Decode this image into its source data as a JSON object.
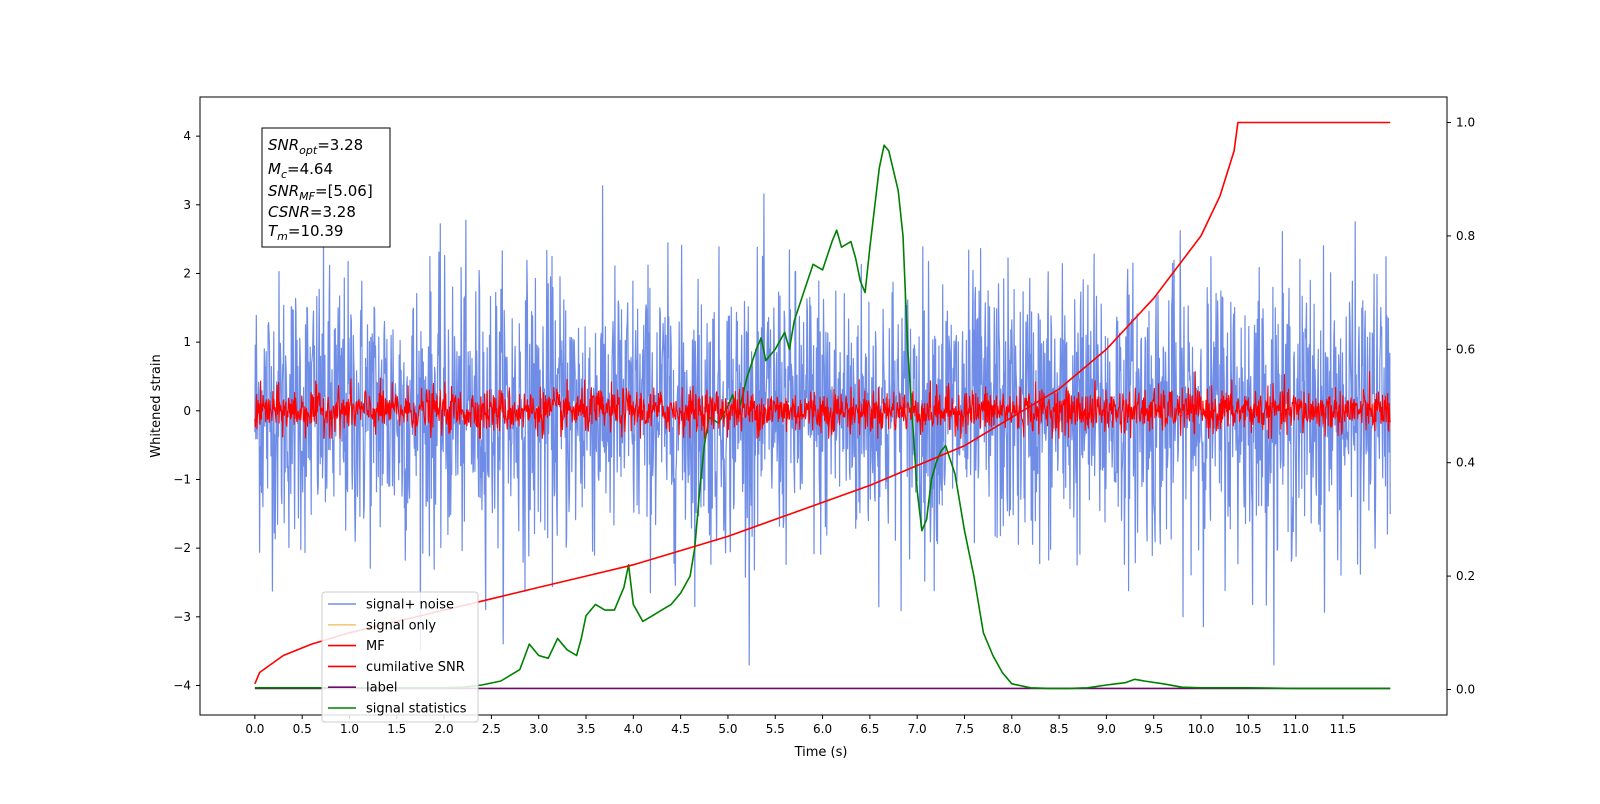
{
  "chart_data": {
    "type": "line",
    "xlabel": "Time (s)",
    "ylabel": "Whitened strain",
    "xlim": [
      -0.58,
      12.6
    ],
    "ylim": [
      -4.43,
      4.57
    ],
    "y2lim": [
      -0.045,
      1.045
    ],
    "x_ticks": [
      "0.0",
      "0.5",
      "1.0",
      "1.5",
      "2.0",
      "2.5",
      "3.0",
      "3.5",
      "4.0",
      "4.5",
      "5.0",
      "5.5",
      "6.0",
      "6.5",
      "7.0",
      "7.5",
      "8.0",
      "8.5",
      "9.0",
      "9.5",
      "10.0",
      "10.5",
      "11.0",
      "11.5"
    ],
    "y_ticks": [
      "4",
      "3",
      "2",
      "1",
      "0",
      "−1",
      "−2",
      "−3",
      "−4"
    ],
    "y2_ticks": [
      "1.0",
      "0.8",
      "0.6",
      "0.4",
      "0.2",
      "0.0"
    ],
    "stats_box": {
      "snr_opt": {
        "name": "SNR",
        "sub": "opt",
        "value": "=3.28"
      },
      "mc": {
        "name": "M",
        "sub": "c",
        "value": "=4.64"
      },
      "snr_mf": {
        "name": "SNR",
        "sub": "MF",
        "value": "=[5.06]"
      },
      "csnr": {
        "name": "CSNR",
        "sub": "",
        "value": "=3.28"
      },
      "tm": {
        "name": "T",
        "sub": "m",
        "value": "=10.39"
      }
    },
    "series": [
      {
        "name": "signal+ noise",
        "color": "#6f8de6",
        "axis": "left",
        "kind": "noise",
        "sigma": 1.0,
        "x_range": [
          0,
          12.0
        ]
      },
      {
        "name": "signal only",
        "color": "#f5c97a",
        "axis": "left",
        "kind": "flat"
      },
      {
        "name": "MF",
        "color": "#ff0000",
        "axis": "left",
        "kind": "noise",
        "sigma": 0.16,
        "x_range": [
          0,
          12.0
        ]
      },
      {
        "name": "cumilative SNR",
        "color": "#ff0000",
        "axis": "right",
        "x": [
          0,
          0.05,
          0.3,
          0.6,
          1.0,
          1.5,
          2.0,
          2.5,
          3.0,
          3.5,
          4.0,
          4.5,
          5.0,
          5.5,
          6.0,
          6.5,
          7.0,
          7.5,
          8.0,
          8.5,
          9.0,
          9.5,
          10.0,
          10.2,
          10.35,
          10.39,
          12.0
        ],
        "y": [
          0.01,
          0.03,
          0.06,
          0.08,
          0.1,
          0.12,
          0.14,
          0.16,
          0.18,
          0.2,
          0.22,
          0.245,
          0.27,
          0.3,
          0.33,
          0.36,
          0.395,
          0.43,
          0.48,
          0.53,
          0.6,
          0.69,
          0.8,
          0.87,
          0.95,
          1.0,
          1.0
        ]
      },
      {
        "name": "label",
        "color": "#6a0a6a",
        "axis": "right",
        "x": [
          0,
          12.0
        ],
        "y": [
          0.002,
          0.002
        ]
      },
      {
        "name": "signal statistics",
        "color": "#008000",
        "axis": "right",
        "x": [
          0,
          0.5,
          1.0,
          1.5,
          2.0,
          2.2,
          2.4,
          2.6,
          2.8,
          2.9,
          3.0,
          3.1,
          3.2,
          3.3,
          3.4,
          3.45,
          3.5,
          3.6,
          3.7,
          3.8,
          3.9,
          3.95,
          4.0,
          4.1,
          4.2,
          4.3,
          4.4,
          4.5,
          4.6,
          4.65,
          4.7,
          4.75,
          4.8,
          4.9,
          5.0,
          5.05,
          5.1,
          5.2,
          5.3,
          5.35,
          5.4,
          5.5,
          5.6,
          5.65,
          5.7,
          5.8,
          5.9,
          6.0,
          6.1,
          6.15,
          6.2,
          6.3,
          6.35,
          6.4,
          6.45,
          6.5,
          6.6,
          6.65,
          6.7,
          6.8,
          6.85,
          6.9,
          7.0,
          7.05,
          7.1,
          7.15,
          7.2,
          7.25,
          7.3,
          7.4,
          7.5,
          7.6,
          7.7,
          7.8,
          7.9,
          8.0,
          8.2,
          8.4,
          8.6,
          8.8,
          9.0,
          9.1,
          9.2,
          9.3,
          9.4,
          9.6,
          9.8,
          10.0,
          10.5,
          11.0,
          11.5,
          12.0
        ],
        "y": [
          0.003,
          0.003,
          0.003,
          0.003,
          0.003,
          0.004,
          0.008,
          0.015,
          0.035,
          0.08,
          0.06,
          0.055,
          0.09,
          0.07,
          0.06,
          0.09,
          0.13,
          0.15,
          0.14,
          0.14,
          0.18,
          0.22,
          0.15,
          0.12,
          0.13,
          0.14,
          0.15,
          0.17,
          0.2,
          0.25,
          0.35,
          0.43,
          0.48,
          0.47,
          0.5,
          0.52,
          0.48,
          0.55,
          0.6,
          0.62,
          0.58,
          0.6,
          0.63,
          0.6,
          0.65,
          0.7,
          0.75,
          0.74,
          0.79,
          0.81,
          0.78,
          0.79,
          0.76,
          0.72,
          0.7,
          0.78,
          0.92,
          0.96,
          0.95,
          0.88,
          0.8,
          0.6,
          0.35,
          0.28,
          0.3,
          0.37,
          0.4,
          0.42,
          0.43,
          0.38,
          0.28,
          0.2,
          0.1,
          0.06,
          0.03,
          0.01,
          0.003,
          0.002,
          0.002,
          0.003,
          0.008,
          0.01,
          0.012,
          0.018,
          0.015,
          0.01,
          0.004,
          0.003,
          0.003,
          0.002,
          0.002,
          0.002
        ]
      }
    ],
    "legend": {
      "placement": "lower-left",
      "items": [
        "signal+ noise",
        "signal only",
        "MF",
        "cumilative SNR",
        "label",
        "signal statistics"
      ]
    }
  }
}
